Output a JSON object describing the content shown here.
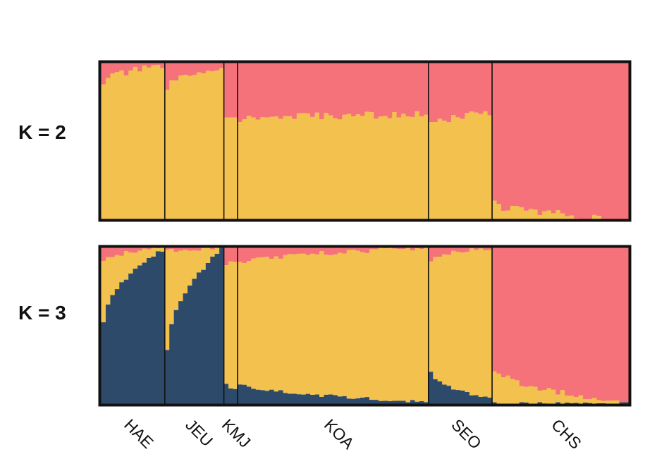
{
  "colors": {
    "yellow": "#F2C14E",
    "red": "#F5727A",
    "navy": "#2E4A6B",
    "frame": "#111111",
    "background": "#FFFFFF"
  },
  "chart_data": [
    {
      "type": "bar",
      "stacked": true,
      "panel_label": "K = 2",
      "ylim": [
        0,
        1
      ],
      "grid": false,
      "components": [
        "yellow",
        "red"
      ],
      "populations": [
        {
          "label": "HAE",
          "n": 14,
          "profile": [
            {
              "yellow": 0.88,
              "red": 0.12
            },
            {
              "yellow": 0.98,
              "red": 0.02
            }
          ]
        },
        {
          "label": "JEU",
          "n": 13,
          "profile": [
            {
              "yellow": 0.83,
              "red": 0.17
            },
            {
              "yellow": 0.98,
              "red": 0.02
            }
          ]
        },
        {
          "label": "KMJ",
          "n": 3,
          "profile": [
            {
              "yellow": 0.64,
              "red": 0.36
            },
            {
              "yellow": 0.64,
              "red": 0.36
            }
          ]
        },
        {
          "label": "KOA",
          "n": 42,
          "profile": [
            {
              "yellow": 0.64,
              "red": 0.36
            },
            {
              "yellow": 0.67,
              "red": 0.33
            }
          ]
        },
        {
          "label": "SEO",
          "n": 14,
          "profile": [
            {
              "yellow": 0.6,
              "red": 0.4
            },
            {
              "yellow": 0.68,
              "red": 0.32
            }
          ]
        },
        {
          "label": "CHS",
          "n": 30,
          "profile": [
            {
              "yellow": 0.1,
              "red": 0.9
            },
            {
              "yellow": 0.0,
              "red": 1.0
            }
          ]
        }
      ]
    },
    {
      "type": "bar",
      "stacked": true,
      "panel_label": "K = 3",
      "ylim": [
        0,
        1
      ],
      "grid": false,
      "components": [
        "navy",
        "yellow",
        "red"
      ],
      "populations": [
        {
          "label": "HAE",
          "n": 14,
          "profile": [
            {
              "navy": 0.52,
              "yellow": 0.4,
              "red": 0.08
            },
            {
              "navy": 1.0,
              "yellow": 0.0,
              "red": 0.0
            }
          ]
        },
        {
          "label": "JEU",
          "n": 13,
          "profile": [
            {
              "navy": 0.35,
              "yellow": 0.63,
              "red": 0.02
            },
            {
              "navy": 1.0,
              "yellow": 0.0,
              "red": 0.0
            }
          ]
        },
        {
          "label": "KMJ",
          "n": 3,
          "profile": [
            {
              "navy": 0.12,
              "yellow": 0.78,
              "red": 0.1
            },
            {
              "navy": 0.1,
              "yellow": 0.8,
              "red": 0.1
            }
          ]
        },
        {
          "label": "KOA",
          "n": 42,
          "profile": [
            {
              "navy": 0.13,
              "yellow": 0.77,
              "red": 0.1
            },
            {
              "navy": 0.01,
              "yellow": 0.99,
              "red": 0.0
            }
          ]
        },
        {
          "label": "SEO",
          "n": 14,
          "profile": [
            {
              "navy": 0.2,
              "yellow": 0.72,
              "red": 0.08
            },
            {
              "navy": 0.03,
              "yellow": 0.97,
              "red": 0.0
            }
          ]
        },
        {
          "label": "CHS",
          "n": 30,
          "profile": [
            {
              "navy": 0.0,
              "yellow": 0.22,
              "red": 0.78
            },
            {
              "navy": 0.0,
              "yellow": 0.0,
              "red": 1.0
            }
          ]
        }
      ]
    }
  ]
}
